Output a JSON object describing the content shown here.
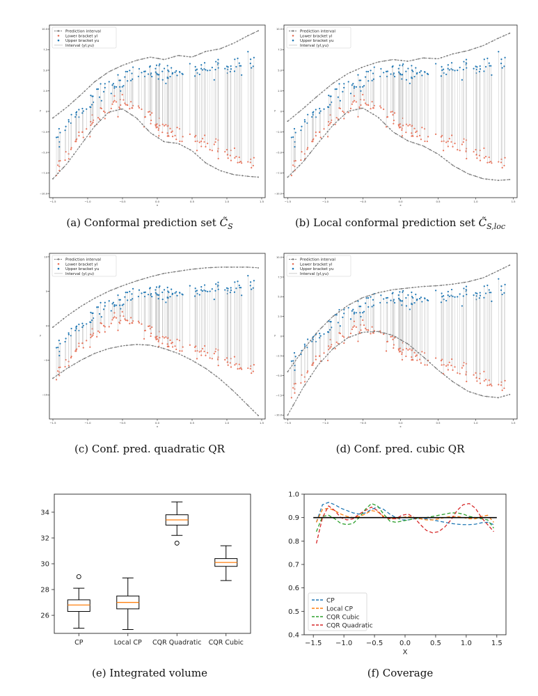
{
  "captions": {
    "a_prefix": "(a) Conformal prediction set ",
    "a_sym": "C̃",
    "a_sub": "S",
    "b_prefix": "(b) Local conformal prediction set ",
    "b_sym": "C̃",
    "b_sub": "S,loc",
    "c": "(c) Conf. pred. quadratic QR",
    "d": "(d) Conf. pred. cubic QR",
    "e": "(e) Integrated volume",
    "f": "(f) Coverage"
  },
  "colors": {
    "band": "#7a7a7a",
    "lower": "#e8735a",
    "upper": "#1f77b4",
    "interval": "#bfbfbf",
    "box_median": "#ff7f0e",
    "cp": "#1f77b4",
    "local_cp": "#ff7f0e",
    "cqr_cubic": "#2ca02c",
    "cqr_quadratic": "#d62728",
    "target": "#000000"
  },
  "chart_data": [
    {
      "id": "a",
      "type": "scatter",
      "legend": [
        "Prediction interval",
        "Lower bracket yl",
        "Upper bracket yu",
        "Interval (yl,yu)"
      ],
      "xlabel": "x",
      "ylabel": "y",
      "xlim": [
        -1.55,
        1.55
      ],
      "ylim": [
        -10.5,
        10.5
      ],
      "xticks": [
        -1.5,
        -1.0,
        -0.5,
        0.0,
        0.5,
        1.0,
        1.5
      ],
      "xticklabels": [
        "−1.5",
        "−1.0",
        "−0.5",
        "0.0",
        "0.5",
        "1.0",
        "1.5"
      ],
      "yticks": [
        -10,
        -7.5,
        -5,
        -2.5,
        0,
        2.5,
        5,
        7.5,
        10
      ],
      "yticklabels": [
        "−10.0",
        "−7.5",
        "−5.0",
        "−2.5",
        "0",
        "2.5",
        "5.0",
        "7.5",
        "10.0"
      ],
      "band_upper": {
        "x": [
          -1.5,
          -1.3,
          -1.1,
          -0.9,
          -0.7,
          -0.5,
          -0.3,
          -0.1,
          0.1,
          0.3,
          0.5,
          0.7,
          0.9,
          1.1,
          1.3,
          1.45
        ],
        "y": [
          -0.8,
          0.5,
          2.0,
          3.6,
          4.8,
          5.6,
          6.2,
          6.6,
          6.3,
          6.8,
          6.6,
          7.3,
          7.6,
          8.3,
          9.2,
          9.8
        ]
      },
      "band_lower": {
        "x": [
          -1.5,
          -1.3,
          -1.1,
          -0.9,
          -0.7,
          -0.5,
          -0.3,
          -0.1,
          0.1,
          0.3,
          0.5,
          0.7,
          0.9,
          1.1,
          1.3,
          1.45
        ],
        "y": [
          -8.2,
          -6.4,
          -4.1,
          -1.8,
          -0.1,
          0.3,
          -0.8,
          -2.6,
          -3.7,
          -3.9,
          -4.8,
          -6.3,
          -7.2,
          -7.7,
          -7.9,
          -8.0
        ]
      },
      "data_lower": {
        "x": [
          -1.45,
          -1.25,
          -1.05,
          -0.85,
          -0.65,
          -0.45,
          -0.25,
          -0.05,
          0.15,
          0.35,
          0.55,
          0.75,
          0.95,
          1.15,
          1.35,
          1.45
        ],
        "y": [
          -7.0,
          -5.0,
          -2.5,
          -0.8,
          0.6,
          0.8,
          0.2,
          -1.2,
          -2.4,
          -3.0,
          -3.5,
          -4.2,
          -4.8,
          -5.4,
          -6.0,
          -6.3
        ]
      },
      "data_upper": {
        "x": [
          -1.45,
          -1.25,
          -1.05,
          -0.85,
          -0.65,
          -0.45,
          -0.25,
          -0.05,
          0.15,
          0.35,
          0.55,
          0.75,
          0.95,
          1.15,
          1.35,
          1.45
        ],
        "y": [
          -3.5,
          -1.5,
          0.5,
          2.0,
          3.2,
          4.0,
          4.6,
          4.8,
          4.6,
          4.8,
          5.0,
          5.2,
          5.4,
          5.6,
          6.0,
          6.3
        ]
      }
    },
    {
      "id": "b",
      "type": "scatter",
      "legend": [
        "Prediction interval",
        "Lower bracket yl",
        "Upper bracket yu",
        "Interval (yl,yu)"
      ],
      "xlabel": "x",
      "ylabel": "y",
      "xlim": [
        -1.55,
        1.55
      ],
      "ylim": [
        -10.5,
        10.5
      ],
      "xticks": [
        -1.5,
        -1.0,
        -0.5,
        0.0,
        0.5,
        1.0,
        1.5
      ],
      "xticklabels": [
        "−1.5",
        "−1.0",
        "−0.5",
        "0.0",
        "0.5",
        "1.0",
        "1.5"
      ],
      "yticks": [
        -10,
        -7.5,
        -5,
        -2.5,
        0,
        2.5,
        5,
        7.5,
        10
      ],
      "yticklabels": [
        "−10.0",
        "−7.5",
        "−5.0",
        "−2.5",
        "0",
        "2.5",
        "5.0",
        "7.5",
        "10.0"
      ],
      "band_upper": {
        "x": [
          -1.5,
          -1.3,
          -1.1,
          -0.9,
          -0.7,
          -0.5,
          -0.3,
          -0.1,
          0.1,
          0.3,
          0.5,
          0.7,
          0.9,
          1.1,
          1.3,
          1.45
        ],
        "y": [
          -1.2,
          0.3,
          1.9,
          3.4,
          4.6,
          5.4,
          6.0,
          6.3,
          6.1,
          6.5,
          6.4,
          7.0,
          7.4,
          8.0,
          8.9,
          9.5
        ]
      },
      "band_lower": {
        "x": [
          -1.5,
          -1.3,
          -1.1,
          -0.9,
          -0.7,
          -0.5,
          -0.3,
          -0.1,
          0.1,
          0.3,
          0.5,
          0.7,
          0.9,
          1.1,
          1.3,
          1.45
        ],
        "y": [
          -8.0,
          -6.2,
          -3.9,
          -1.7,
          0.0,
          0.4,
          -0.7,
          -2.5,
          -3.6,
          -4.2,
          -5.2,
          -6.6,
          -7.6,
          -8.2,
          -8.4,
          -8.3
        ]
      },
      "data_lower": {
        "x": [
          -1.45,
          -1.25,
          -1.05,
          -0.85,
          -0.65,
          -0.45,
          -0.25,
          -0.05,
          0.15,
          0.35,
          0.55,
          0.75,
          0.95,
          1.15,
          1.35,
          1.45
        ],
        "y": [
          -7.0,
          -5.0,
          -2.5,
          -0.8,
          0.6,
          0.8,
          0.2,
          -1.2,
          -2.4,
          -3.0,
          -3.5,
          -4.2,
          -4.8,
          -5.4,
          -6.0,
          -6.3
        ]
      },
      "data_upper": {
        "x": [
          -1.45,
          -1.25,
          -1.05,
          -0.85,
          -0.65,
          -0.45,
          -0.25,
          -0.05,
          0.15,
          0.35,
          0.55,
          0.75,
          0.95,
          1.15,
          1.35,
          1.45
        ],
        "y": [
          -3.5,
          -1.5,
          0.5,
          2.0,
          3.2,
          4.0,
          4.6,
          4.8,
          4.6,
          4.8,
          5.0,
          5.2,
          5.4,
          5.6,
          6.0,
          6.3
        ]
      }
    },
    {
      "id": "c",
      "type": "scatter",
      "legend": [
        "Prediction interval",
        "Lower bracket yl",
        "Upper bracket yu",
        "Interval (yl,yu)"
      ],
      "xlabel": "x",
      "ylabel": "y",
      "xlim": [
        -1.55,
        1.55
      ],
      "ylim": [
        -13.5,
        10.5
      ],
      "xticks": [
        -1.5,
        -1.0,
        -0.5,
        0.0,
        0.5,
        1.0,
        1.5
      ],
      "xticklabels": [
        "−1.5",
        "−1.0",
        "−0.5",
        "0.0",
        "0.5",
        "1.0",
        "1.5"
      ],
      "yticks": [
        -10,
        -5,
        0,
        5,
        10
      ],
      "yticklabels": [
        "−10",
        "−5",
        "0",
        "5",
        "10"
      ],
      "band_upper": {
        "x": [
          -1.5,
          -1.3,
          -1.1,
          -0.9,
          -0.7,
          -0.5,
          -0.3,
          -0.1,
          0.1,
          0.3,
          0.5,
          0.7,
          0.9,
          1.1,
          1.3,
          1.45
        ],
        "y": [
          -0.2,
          1.4,
          2.8,
          4.0,
          5.0,
          5.8,
          6.5,
          7.1,
          7.6,
          7.9,
          8.2,
          8.4,
          8.5,
          8.5,
          8.5,
          8.4
        ]
      },
      "band_lower": {
        "x": [
          -1.5,
          -1.3,
          -1.1,
          -0.9,
          -0.7,
          -0.5,
          -0.3,
          -0.1,
          0.1,
          0.3,
          0.5,
          0.7,
          0.9,
          1.1,
          1.3,
          1.45
        ],
        "y": [
          -7.6,
          -6.2,
          -5.0,
          -4.0,
          -3.3,
          -2.9,
          -2.7,
          -2.8,
          -3.3,
          -4.0,
          -5.0,
          -6.2,
          -7.7,
          -9.5,
          -11.5,
          -13.0
        ]
      },
      "data_lower": {
        "x": [
          -1.45,
          -1.25,
          -1.05,
          -0.85,
          -0.65,
          -0.45,
          -0.25,
          -0.05,
          0.15,
          0.35,
          0.55,
          0.75,
          0.95,
          1.15,
          1.35,
          1.45
        ],
        "y": [
          -7.0,
          -5.0,
          -2.5,
          -0.8,
          0.6,
          0.8,
          0.2,
          -1.2,
          -2.4,
          -3.0,
          -3.5,
          -4.2,
          -4.8,
          -5.4,
          -6.0,
          -6.3
        ]
      },
      "data_upper": {
        "x": [
          -1.45,
          -1.25,
          -1.05,
          -0.85,
          -0.65,
          -0.45,
          -0.25,
          -0.05,
          0.15,
          0.35,
          0.55,
          0.75,
          0.95,
          1.15,
          1.35,
          1.45
        ],
        "y": [
          -3.5,
          -1.5,
          0.5,
          2.0,
          3.2,
          4.0,
          4.6,
          4.8,
          4.6,
          4.8,
          5.0,
          5.2,
          5.4,
          5.6,
          6.0,
          6.3
        ]
      }
    },
    {
      "id": "d",
      "type": "scatter",
      "legend": [
        "Prediction interval",
        "Lower bracket yl",
        "Upper bracket yu",
        "Interval (yl,yu)"
      ],
      "xlabel": "x",
      "ylabel": "y",
      "xlim": [
        -1.55,
        1.55
      ],
      "ylim": [
        -10.5,
        10.5
      ],
      "xticks": [
        -1.5,
        -1.0,
        -0.5,
        0.0,
        0.5,
        1.0,
        1.5
      ],
      "xticklabels": [
        "−1.5",
        "−1.0",
        "−0.5",
        "0.0",
        "0.5",
        "1.0",
        "1.5"
      ],
      "yticks": [
        -10,
        -7.5,
        -5,
        -2.5,
        0,
        2.5,
        5,
        7.5,
        10
      ],
      "yticklabels": [
        "−10.0",
        "−7.5",
        "−5.0",
        "−2.5",
        "0",
        "2.5",
        "5.0",
        "7.5",
        "10.0"
      ],
      "band_upper": {
        "x": [
          -1.5,
          -1.3,
          -1.1,
          -0.9,
          -0.7,
          -0.5,
          -0.3,
          -0.1,
          0.1,
          0.3,
          0.5,
          0.7,
          0.9,
          1.1,
          1.3,
          1.45
        ],
        "y": [
          -4.5,
          -1.8,
          0.6,
          2.5,
          3.9,
          4.9,
          5.5,
          5.9,
          6.1,
          6.3,
          6.4,
          6.6,
          6.9,
          7.4,
          8.3,
          9.0
        ]
      },
      "band_lower": {
        "x": [
          -1.5,
          -1.3,
          -1.1,
          -0.9,
          -0.7,
          -0.5,
          -0.3,
          -0.1,
          0.1,
          0.3,
          0.5,
          0.7,
          0.9,
          1.1,
          1.3,
          1.45
        ],
        "y": [
          -10.0,
          -6.6,
          -3.7,
          -1.6,
          -0.2,
          0.5,
          0.6,
          0.1,
          -1.0,
          -2.6,
          -4.3,
          -5.8,
          -7.0,
          -7.6,
          -7.8,
          -7.4
        ]
      },
      "data_lower": {
        "x": [
          -1.45,
          -1.25,
          -1.05,
          -0.85,
          -0.65,
          -0.45,
          -0.25,
          -0.05,
          0.15,
          0.35,
          0.55,
          0.75,
          0.95,
          1.15,
          1.35,
          1.45
        ],
        "y": [
          -7.0,
          -5.0,
          -2.5,
          -0.8,
          0.6,
          0.8,
          0.2,
          -1.2,
          -2.4,
          -3.0,
          -3.5,
          -4.2,
          -4.8,
          -5.4,
          -6.0,
          -6.3
        ]
      },
      "data_upper": {
        "x": [
          -1.45,
          -1.25,
          -1.05,
          -0.85,
          -0.65,
          -0.45,
          -0.25,
          -0.05,
          0.15,
          0.35,
          0.55,
          0.75,
          0.95,
          1.15,
          1.35,
          1.45
        ],
        "y": [
          -3.5,
          -1.5,
          0.5,
          2.0,
          3.2,
          4.0,
          4.6,
          4.8,
          4.6,
          4.8,
          5.0,
          5.2,
          5.4,
          5.6,
          6.0,
          6.3
        ]
      }
    },
    {
      "id": "e",
      "type": "box",
      "categories": [
        "CP",
        "Local CP",
        "CQR Quadratic",
        "CQR Cubic"
      ],
      "ylim": [
        24.6,
        35.4
      ],
      "yticks": [
        26,
        28,
        30,
        32,
        34
      ],
      "yticklabels": [
        "26",
        "28",
        "30",
        "32",
        "34"
      ],
      "boxes": [
        {
          "whislo": 25.0,
          "q1": 26.3,
          "med": 26.8,
          "q3": 27.2,
          "whishi": 28.1,
          "fliers": [
            29.0
          ]
        },
        {
          "whislo": 24.9,
          "q1": 26.5,
          "med": 27.0,
          "q3": 27.5,
          "whishi": 28.9,
          "fliers": []
        },
        {
          "whislo": 32.2,
          "q1": 33.0,
          "med": 33.4,
          "q3": 33.8,
          "whishi": 34.8,
          "fliers": [
            31.6
          ]
        },
        {
          "whislo": 28.7,
          "q1": 29.8,
          "med": 30.1,
          "q3": 30.4,
          "whishi": 31.4,
          "fliers": []
        }
      ]
    },
    {
      "id": "f",
      "type": "line",
      "xlabel": "X",
      "xlim": [
        -1.65,
        1.65
      ],
      "ylim": [
        0.4,
        1.0
      ],
      "xticks": [
        -1.5,
        -1.0,
        -0.5,
        0.0,
        0.5,
        1.0,
        1.5
      ],
      "xticklabels": [
        "−1.5",
        "−1.0",
        "−0.5",
        "0.0",
        "0.5",
        "1.0",
        "1.5"
      ],
      "yticks": [
        0.4,
        0.5,
        0.6,
        0.7,
        0.8,
        0.9,
        1.0
      ],
      "yticklabels": [
        "0.4",
        "0.5",
        "0.6",
        "0.7",
        "0.8",
        "0.9",
        "1.0"
      ],
      "target": 0.9,
      "x": [
        -1.45,
        -1.35,
        -1.25,
        -1.15,
        -1.05,
        -0.95,
        -0.85,
        -0.75,
        -0.65,
        -0.55,
        -0.45,
        -0.35,
        -0.25,
        -0.15,
        -0.05,
        0.05,
        0.15,
        0.25,
        0.35,
        0.45,
        0.55,
        0.65,
        0.75,
        0.85,
        0.95,
        1.05,
        1.15,
        1.25,
        1.35,
        1.45
      ],
      "series": [
        {
          "name": "CP",
          "values": [
            0.88,
            0.955,
            0.965,
            0.955,
            0.94,
            0.93,
            0.92,
            0.915,
            0.92,
            0.935,
            0.945,
            0.935,
            0.915,
            0.9,
            0.89,
            0.89,
            0.895,
            0.895,
            0.895,
            0.89,
            0.885,
            0.88,
            0.875,
            0.872,
            0.87,
            0.87,
            0.872,
            0.878,
            0.88,
            0.87
          ]
        },
        {
          "name": "Local CP",
          "values": [
            0.88,
            0.935,
            0.94,
            0.93,
            0.915,
            0.905,
            0.9,
            0.905,
            0.915,
            0.93,
            0.925,
            0.905,
            0.895,
            0.895,
            0.9,
            0.905,
            0.9,
            0.895,
            0.89,
            0.89,
            0.895,
            0.9,
            0.905,
            0.905,
            0.9,
            0.895,
            0.895,
            0.905,
            0.91,
            0.88
          ]
        },
        {
          "name": "CQR Cubic",
          "values": [
            0.84,
            0.905,
            0.91,
            0.895,
            0.875,
            0.87,
            0.875,
            0.9,
            0.935,
            0.96,
            0.95,
            0.915,
            0.885,
            0.88,
            0.885,
            0.89,
            0.895,
            0.9,
            0.9,
            0.905,
            0.91,
            0.915,
            0.92,
            0.92,
            0.915,
            0.905,
            0.9,
            0.895,
            0.89,
            0.855
          ]
        },
        {
          "name": "CQR Quadratic",
          "values": [
            0.79,
            0.9,
            0.95,
            0.93,
            0.9,
            0.89,
            0.895,
            0.915,
            0.93,
            0.945,
            0.93,
            0.9,
            0.895,
            0.895,
            0.91,
            0.915,
            0.9,
            0.87,
            0.845,
            0.835,
            0.84,
            0.86,
            0.89,
            0.93,
            0.955,
            0.96,
            0.94,
            0.9,
            0.87,
            0.84
          ]
        }
      ]
    }
  ]
}
